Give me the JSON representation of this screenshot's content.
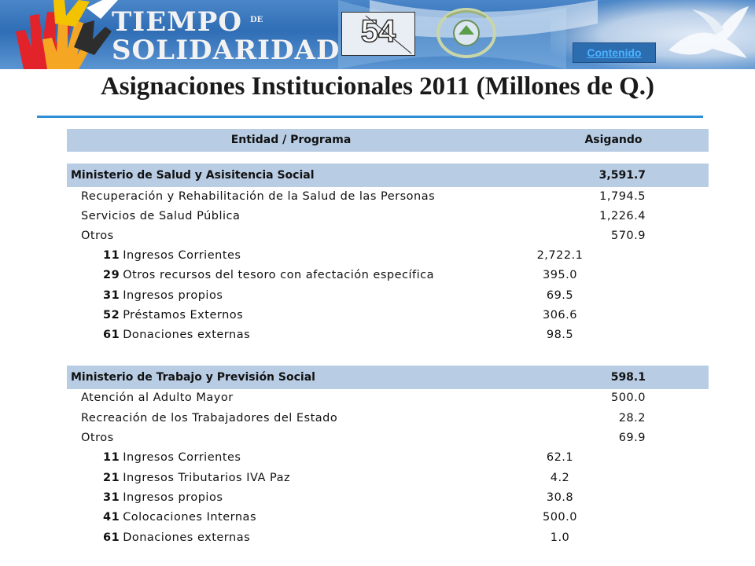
{
  "banner": {
    "logo_line1": "TIEMPO",
    "logo_de": "DE",
    "logo_line2": "SOLIDARIDAD",
    "slide_number": "54",
    "contenido_link": "Contenido"
  },
  "title": "Asignaciones Institucionales 2011 (Millones de Q.)",
  "colors": {
    "header_bg": "#b8cce4",
    "rule": "#2e8fd6",
    "banner": "#2f6db5"
  },
  "table": {
    "col_entity": "Entidad / Programa",
    "col_assigned": "Asigando",
    "sections": [
      {
        "name": "Ministerio de Salud y Asisitencia Social",
        "total": "3,591.7",
        "programs": [
          {
            "name": "Recuperación y Rehabilitación de la Salud de las Personas",
            "value": "1,794.5"
          },
          {
            "name": "Servicios de Salud Pública",
            "value": "1,226.4"
          },
          {
            "name": "Otros",
            "value": "570.9"
          }
        ],
        "sources": [
          {
            "code": "11",
            "name": "Ingresos Corrientes",
            "value": "2,722.1"
          },
          {
            "code": "29",
            "name": "Otros recursos del tesoro con afectación específica",
            "value": "395.0"
          },
          {
            "code": "31",
            "name": "Ingresos propios",
            "value": "69.5"
          },
          {
            "code": "52",
            "name": "Préstamos Externos",
            "value": "306.6"
          },
          {
            "code": "61",
            "name": "Donaciones externas",
            "value": "98.5"
          }
        ]
      },
      {
        "name": "Ministerio de Trabajo y Previsión Social",
        "total": "598.1",
        "programs": [
          {
            "name": "Atención al Adulto Mayor",
            "value": "500.0"
          },
          {
            "name": "Recreación de los Trabajadores del Estado",
            "value": "28.2"
          },
          {
            "name": "Otros",
            "value": "69.9"
          }
        ],
        "sources": [
          {
            "code": "11",
            "name": "Ingresos Corrientes",
            "value": "62.1"
          },
          {
            "code": "21",
            "name": "Ingresos Tributarios IVA Paz",
            "value": "4.2"
          },
          {
            "code": "31",
            "name": "Ingresos propios",
            "value": "30.8"
          },
          {
            "code": "41",
            "name": "Colocaciones Internas",
            "value": "500.0"
          },
          {
            "code": "61",
            "name": "Donaciones externas",
            "value": "1.0"
          }
        ]
      }
    ]
  }
}
